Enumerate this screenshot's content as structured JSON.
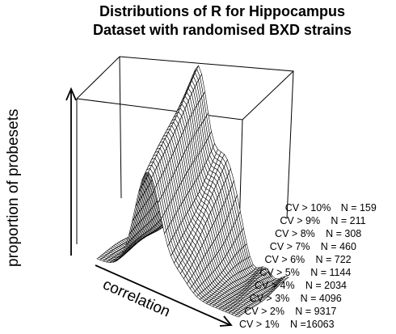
{
  "chart_data": {
    "type": "surface",
    "title": [
      "Distributions of R for Hippocampus",
      "Dataset with randomised BXD strains"
    ],
    "xlabel": "correlation",
    "zlabel": "proportion of probesets",
    "series": [
      {
        "name": "CV > 1%",
        "n_label": "N =16063",
        "n": 16063
      },
      {
        "name": "CV > 2%",
        "n_label": "N = 9317",
        "n": 9317
      },
      {
        "name": "CV > 3%",
        "n_label": "N = 4096",
        "n": 4096
      },
      {
        "name": "CV > 4%",
        "n_label": "N = 2034",
        "n": 2034
      },
      {
        "name": "CV > 5%",
        "n_label": "N = 1144",
        "n": 1144
      },
      {
        "name": "CV > 6%",
        "n_label": "N = 722",
        "n": 722
      },
      {
        "name": "CV > 7%",
        "n_label": "N = 460",
        "n": 460
      },
      {
        "name": "CV > 8%",
        "n_label": "N = 308",
        "n": 308
      },
      {
        "name": "CV > 9%",
        "n_label": "N = 211",
        "n": 211
      },
      {
        "name": "CV > 10%",
        "n_label": "N = 159",
        "n": 159
      }
    ]
  }
}
